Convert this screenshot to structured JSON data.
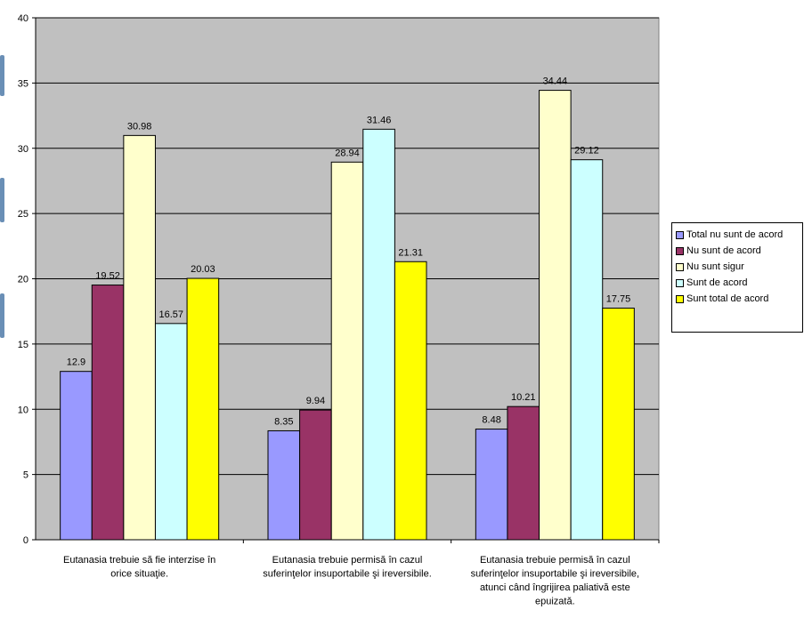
{
  "chart_data": {
    "type": "bar",
    "categories": [
      [
        "Eutanasia trebuie să fie interzise în",
        "orice situaţie."
      ],
      [
        "Eutanasia trebuie permisă în cazul",
        "suferinţelor insuportabile şi ireversibile."
      ],
      [
        "Eutanasia trebuie permisă în cazul",
        "suferinţelor insuportabile şi ireversibile,",
        "atunci când îngrijirea paliativă este",
        "epuizată."
      ]
    ],
    "series": [
      {
        "name": "Total  nu sunt de acord",
        "color": "#9999ff",
        "values": [
          12.9,
          8.35,
          8.48
        ],
        "labels": [
          "12.9",
          "8.35",
          "8.48"
        ]
      },
      {
        "name": "Nu sunt de acord",
        "color": "#993366",
        "values": [
          19.52,
          9.94,
          10.21
        ],
        "labels": [
          "19.52",
          "9.94",
          "10.21"
        ]
      },
      {
        "name": "Nu sunt sigur",
        "color": "#ffffcc",
        "values": [
          30.98,
          28.94,
          34.44
        ],
        "labels": [
          "30.98",
          "28.94",
          "34.44"
        ]
      },
      {
        "name": "Sunt de acord",
        "color": "#ccffff",
        "values": [
          16.57,
          31.46,
          29.12
        ],
        "labels": [
          "16.57",
          "31.46",
          "29.12"
        ]
      },
      {
        "name": "Sunt total de acord",
        "color": "#ffff00",
        "values": [
          20.03,
          21.31,
          17.75
        ],
        "labels": [
          "20.03",
          "21.31",
          "17.75"
        ]
      }
    ],
    "yticks": [
      "0",
      "5",
      "10",
      "15",
      "20",
      "25",
      "30",
      "35",
      "40"
    ],
    "ylim": [
      0,
      40
    ],
    "grid": true,
    "plot_background": "#c0c0c0",
    "legend_position": "right"
  }
}
